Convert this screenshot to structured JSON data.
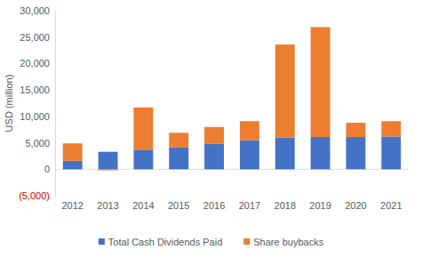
{
  "chart_data": {
    "type": "bar",
    "stacked": true,
    "categories": [
      "2012",
      "2013",
      "2014",
      "2015",
      "2016",
      "2017",
      "2018",
      "2019",
      "2020",
      "2021"
    ],
    "series": [
      {
        "name": "Total Cash Dividends Paid",
        "color": "#4472c4",
        "values": [
          1600,
          3300,
          3700,
          4100,
          4800,
          5500,
          6000,
          6100,
          6100,
          6200
        ]
      },
      {
        "name": "Share buybacks",
        "color": "#ed7d31",
        "values": [
          3300,
          -200,
          8000,
          2800,
          3200,
          3600,
          17600,
          20800,
          2700,
          2900
        ]
      }
    ],
    "y_label": "USD (million)",
    "ylim": [
      -5000,
      30000
    ],
    "yticks": [
      {
        "value": -5000,
        "label": "(5,000)"
      },
      0,
      {
        "value": 5000,
        "label": "5,000"
      },
      {
        "value": 10000,
        "label": "10,000"
      },
      {
        "value": 15000,
        "label": "15,000"
      },
      {
        "value": 20000,
        "label": "20,000"
      },
      {
        "value": 25000,
        "label": "25,000"
      },
      {
        "value": 30000,
        "label": "30,000"
      }
    ],
    "grid": false,
    "legend": "bottom"
  }
}
